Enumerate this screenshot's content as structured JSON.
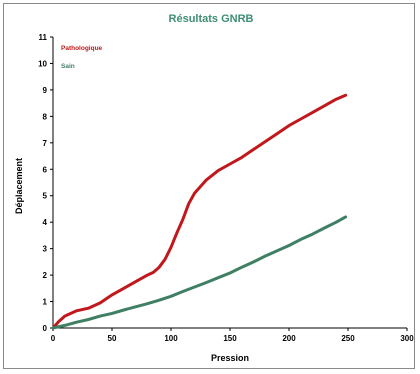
{
  "chart_data": {
    "type": "line",
    "title": "Résultats GNRB",
    "xlabel": "Pression",
    "ylabel": "Déplacement",
    "xlim": [
      0,
      300
    ],
    "ylim": [
      0,
      11
    ],
    "xticks": [
      "0",
      "50",
      "100",
      "150",
      "200",
      "250",
      "300"
    ],
    "yticks": [
      "0",
      "1",
      "2",
      "3",
      "4",
      "5",
      "6",
      "7",
      "8",
      "9",
      "10",
      "11"
    ],
    "grid": false,
    "legend_position": "top-left",
    "series": [
      {
        "name": "Pathologique",
        "color": "#c0181c",
        "x": [
          0,
          5,
          10,
          20,
          30,
          40,
          50,
          60,
          70,
          80,
          85,
          90,
          95,
          100,
          105,
          110,
          115,
          120,
          130,
          140,
          150,
          160,
          170,
          180,
          190,
          200,
          210,
          220,
          230,
          240,
          248
        ],
        "y": [
          0,
          0.25,
          0.45,
          0.65,
          0.75,
          0.95,
          1.25,
          1.5,
          1.75,
          2.0,
          2.1,
          2.3,
          2.6,
          3.05,
          3.6,
          4.1,
          4.7,
          5.1,
          5.6,
          5.95,
          6.2,
          6.45,
          6.75,
          7.05,
          7.35,
          7.65,
          7.9,
          8.15,
          8.4,
          8.65,
          8.8
        ]
      },
      {
        "name": "Sain",
        "color": "#3f7f63",
        "x": [
          0,
          10,
          20,
          30,
          40,
          50,
          60,
          70,
          80,
          90,
          100,
          110,
          120,
          130,
          140,
          150,
          160,
          170,
          180,
          190,
          200,
          210,
          220,
          230,
          240,
          248
        ],
        "y": [
          0,
          0.1,
          0.22,
          0.32,
          0.45,
          0.55,
          0.68,
          0.8,
          0.92,
          1.05,
          1.2,
          1.38,
          1.55,
          1.72,
          1.9,
          2.08,
          2.3,
          2.5,
          2.72,
          2.92,
          3.12,
          3.35,
          3.55,
          3.78,
          4.0,
          4.2
        ]
      }
    ]
  }
}
